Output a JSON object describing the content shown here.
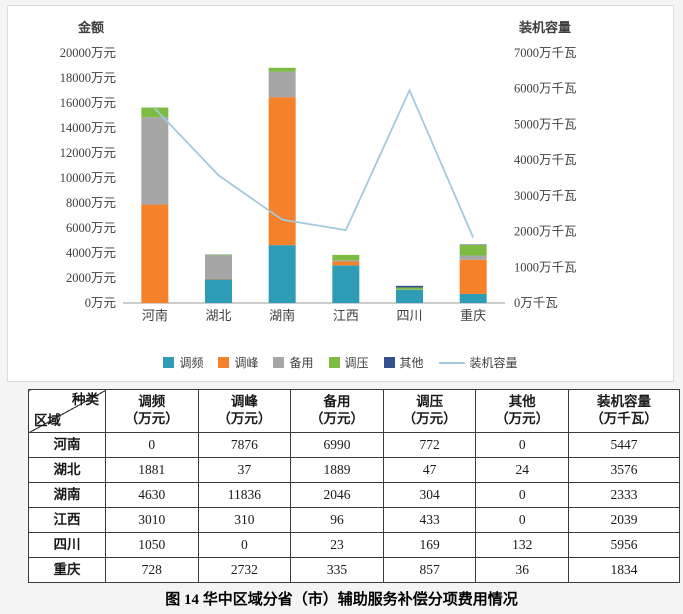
{
  "chart_data": {
    "type": "bar",
    "subtype": "stacked-bar-with-line",
    "grid": false,
    "legend_position": "bottom",
    "categories": [
      "河南",
      "湖北",
      "湖南",
      "江西",
      "四川",
      "重庆"
    ],
    "series": [
      {
        "name": "调频",
        "color": "#2D9CB4",
        "values": [
          0,
          1881,
          4630,
          3010,
          1050,
          728
        ]
      },
      {
        "name": "调峰",
        "color": "#F5822A",
        "values": [
          7876,
          37,
          11836,
          310,
          0,
          2732
        ]
      },
      {
        "name": "备用",
        "color": "#A6A6A6",
        "values": [
          6990,
          1889,
          2046,
          96,
          23,
          335
        ]
      },
      {
        "name": "调压",
        "color": "#7DBB42",
        "values": [
          772,
          47,
          304,
          433,
          169,
          857
        ]
      },
      {
        "name": "其他",
        "color": "#33518E",
        "values": [
          0,
          24,
          0,
          0,
          132,
          36
        ]
      }
    ],
    "line_series": {
      "name": "装机容量",
      "color": "#A3C9DC",
      "values": [
        5447,
        3576,
        2333,
        2039,
        5956,
        1834
      ]
    },
    "left_axis": {
      "title": "金额",
      "unit": "万元",
      "min": 0,
      "max": 20000,
      "step": 2000
    },
    "right_axis": {
      "title": "装机容量",
      "unit": "万千瓦",
      "min": 0,
      "max": 7000,
      "step": 1000
    },
    "axis_text_color": "#3f3f3f"
  },
  "table": {
    "corner": {
      "top": "种类",
      "bottom": "区域"
    },
    "columns": [
      {
        "line1": "调频",
        "line2": "（万元）"
      },
      {
        "line1": "调峰",
        "line2": "（万元）"
      },
      {
        "line1": "备用",
        "line2": "（万元）"
      },
      {
        "line1": "调压",
        "line2": "（万元）"
      },
      {
        "line1": "其他",
        "line2": "（万元）"
      },
      {
        "line1": "装机容量",
        "line2": "（万千瓦）"
      }
    ],
    "rows": [
      {
        "label": "河南",
        "values": [
          0,
          7876,
          6990,
          772,
          0,
          5447
        ]
      },
      {
        "label": "湖北",
        "values": [
          1881,
          37,
          1889,
          47,
          24,
          3576
        ]
      },
      {
        "label": "湖南",
        "values": [
          4630,
          11836,
          2046,
          304,
          0,
          2333
        ]
      },
      {
        "label": "江西",
        "values": [
          3010,
          310,
          96,
          433,
          0,
          2039
        ]
      },
      {
        "label": "四川",
        "values": [
          1050,
          0,
          23,
          169,
          132,
          5956
        ]
      },
      {
        "label": "重庆",
        "values": [
          728,
          2732,
          335,
          857,
          36,
          1834
        ]
      }
    ]
  },
  "caption": "图 14  华中区域分省（市）辅助服务补偿分项费用情况"
}
